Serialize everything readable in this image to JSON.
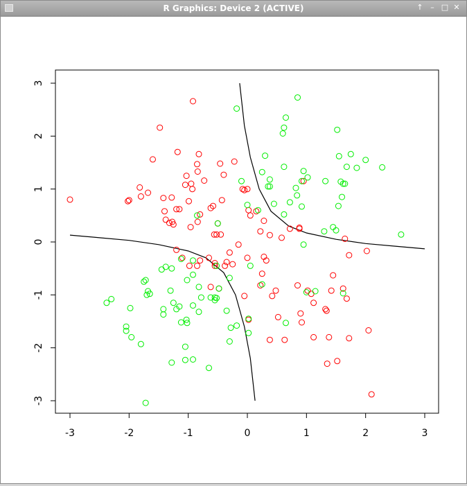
{
  "window": {
    "title": "R Graphics: Device 2 (ACTIVE)",
    "controls": [
      "pin-icon",
      "minimize-icon",
      "maximize-icon",
      "close-icon"
    ]
  },
  "chart_data": {
    "type": "scatter",
    "xlim": [
      -3,
      3
    ],
    "ylim": [
      -3,
      3
    ],
    "x_ticks": [
      "-3",
      "-2",
      "-1",
      "0",
      "1",
      "2",
      "3"
    ],
    "y_ticks": [
      "-3",
      "-2",
      "-1",
      "0",
      "1",
      "2",
      "3"
    ],
    "grid": false,
    "colors": {
      "red": "#ff0000",
      "green": "#00ee00",
      "curve": "#000000"
    },
    "series": [
      {
        "color": "#ff0000",
        "points": [
          [
            -3.0,
            0.8
          ],
          [
            -2.02,
            0.77
          ],
          [
            -2.0,
            0.79
          ],
          [
            -1.82,
            1.03
          ],
          [
            -1.8,
            0.86
          ],
          [
            -1.68,
            0.93
          ],
          [
            -1.6,
            1.56
          ],
          [
            -1.48,
            2.16
          ],
          [
            -1.42,
            0.83
          ],
          [
            -1.4,
            0.58
          ],
          [
            -1.38,
            0.42
          ],
          [
            -1.32,
            0.36
          ],
          [
            -1.28,
            0.84
          ],
          [
            -1.27,
            0.38
          ],
          [
            -1.25,
            0.33
          ],
          [
            -1.2,
            0.62
          ],
          [
            -1.18,
            1.7
          ],
          [
            -1.15,
            0.62
          ],
          [
            -1.05,
            1.08
          ],
          [
            -1.03,
            1.25
          ],
          [
            -0.99,
            0.77
          ],
          [
            -0.96,
            0.28
          ],
          [
            -0.95,
            1.1
          ],
          [
            -0.93,
            1.0
          ],
          [
            -0.92,
            2.66
          ],
          [
            -0.85,
            1.47
          ],
          [
            -0.84,
            1.33
          ],
          [
            -0.82,
            1.66
          ],
          [
            -0.8,
            0.52
          ],
          [
            -0.84,
            0.38
          ],
          [
            -0.73,
            1.16
          ],
          [
            -0.62,
            0.64
          ],
          [
            -0.58,
            0.68
          ],
          [
            -0.56,
            0.14
          ],
          [
            -0.52,
            0.14
          ],
          [
            -0.5,
            0.35
          ],
          [
            -0.46,
            1.48
          ],
          [
            -0.45,
            0.14
          ],
          [
            -0.43,
            0.79
          ],
          [
            -0.4,
            1.27
          ],
          [
            -0.22,
            1.52
          ],
          [
            -0.08,
            1.0
          ],
          [
            -0.05,
            0.98
          ],
          [
            0.0,
            1.0
          ],
          [
            0.02,
            0.6
          ],
          [
            0.05,
            0.5
          ],
          [
            0.15,
            0.58
          ],
          [
            0.22,
            0.2
          ],
          [
            0.28,
            0.4
          ],
          [
            0.38,
            0.13
          ],
          [
            0.58,
            0.08
          ],
          [
            0.72,
            0.25
          ],
          [
            0.88,
            0.27
          ],
          [
            0.88,
            0.25
          ],
          [
            0.95,
            1.15
          ],
          [
            1.65,
            0.06
          ],
          [
            1.72,
            -0.25
          ],
          [
            2.02,
            -0.17
          ],
          [
            -1.2,
            -0.15
          ],
          [
            -1.1,
            -0.3
          ],
          [
            -0.98,
            -0.45
          ],
          [
            -0.85,
            -0.45
          ],
          [
            -0.8,
            -0.35
          ],
          [
            -0.65,
            -0.3
          ],
          [
            -0.62,
            -0.85
          ],
          [
            -0.55,
            -0.4
          ],
          [
            -0.55,
            -0.45
          ],
          [
            -0.48,
            -0.88
          ],
          [
            -0.38,
            -0.45
          ],
          [
            -0.35,
            -0.38
          ],
          [
            -0.3,
            -0.2
          ],
          [
            -0.25,
            -0.42
          ],
          [
            -0.15,
            -0.05
          ],
          [
            -0.05,
            -1.02
          ],
          [
            0.0,
            -0.3
          ],
          [
            0.02,
            -1.47
          ],
          [
            0.22,
            -0.82
          ],
          [
            0.25,
            -0.6
          ],
          [
            0.28,
            -0.28
          ],
          [
            0.32,
            -0.35
          ],
          [
            0.38,
            -1.85
          ],
          [
            0.42,
            -1.02
          ],
          [
            0.48,
            -0.92
          ],
          [
            0.52,
            -1.42
          ],
          [
            0.63,
            -1.85
          ],
          [
            0.85,
            -0.82
          ],
          [
            0.9,
            -1.35
          ],
          [
            0.92,
            -1.52
          ],
          [
            1.02,
            -0.92
          ],
          [
            1.08,
            -0.98
          ],
          [
            1.12,
            -1.15
          ],
          [
            1.12,
            -1.8
          ],
          [
            1.32,
            -1.27
          ],
          [
            1.34,
            -1.3
          ],
          [
            1.35,
            -2.3
          ],
          [
            1.38,
            -1.8
          ],
          [
            1.42,
            -0.92
          ],
          [
            1.45,
            -0.63
          ],
          [
            1.52,
            -2.25
          ],
          [
            1.62,
            -0.88
          ],
          [
            1.68,
            -1.07
          ],
          [
            1.72,
            -1.82
          ],
          [
            2.05,
            -1.67
          ],
          [
            2.1,
            -2.88
          ]
        ]
      },
      {
        "color": "#00ee00",
        "points": [
          [
            -0.18,
            2.52
          ],
          [
            0.25,
            1.32
          ],
          [
            0.3,
            1.63
          ],
          [
            0.35,
            1.05
          ],
          [
            0.38,
            1.18
          ],
          [
            0.45,
            0.72
          ],
          [
            0.6,
            2.05
          ],
          [
            0.62,
            2.16
          ],
          [
            0.65,
            2.35
          ],
          [
            0.62,
            1.42
          ],
          [
            0.62,
            0.52
          ],
          [
            0.72,
            0.75
          ],
          [
            0.82,
            1.02
          ],
          [
            0.84,
            0.88
          ],
          [
            0.85,
            2.73
          ],
          [
            0.92,
            1.15
          ],
          [
            0.92,
            0.67
          ],
          [
            0.95,
            1.34
          ],
          [
            1.02,
            1.22
          ],
          [
            1.32,
            1.15
          ],
          [
            1.3,
            0.2
          ],
          [
            1.45,
            0.28
          ],
          [
            1.5,
            0.22
          ],
          [
            1.52,
            2.12
          ],
          [
            1.54,
            0.68
          ],
          [
            1.55,
            1.62
          ],
          [
            1.58,
            1.14
          ],
          [
            1.62,
            1.1
          ],
          [
            1.6,
            0.85
          ],
          [
            1.65,
            1.1
          ],
          [
            1.68,
            1.42
          ],
          [
            1.75,
            1.66
          ],
          [
            1.85,
            1.4
          ],
          [
            2.0,
            1.55
          ],
          [
            2.28,
            1.41
          ],
          [
            2.6,
            0.14
          ],
          [
            0.0,
            0.7
          ],
          [
            0.18,
            0.6
          ],
          [
            -0.5,
            0.35
          ],
          [
            -0.85,
            0.5
          ],
          [
            -0.1,
            1.15
          ],
          [
            0.38,
            1.05
          ],
          [
            0.95,
            -0.05
          ],
          [
            -1.45,
            -0.52
          ],
          [
            -1.38,
            -0.47
          ],
          [
            -1.28,
            -0.5
          ],
          [
            -1.12,
            -0.32
          ],
          [
            -0.92,
            -0.35
          ],
          [
            -1.02,
            -0.72
          ],
          [
            -0.92,
            -0.62
          ],
          [
            -0.82,
            -0.85
          ],
          [
            -0.52,
            -0.45
          ],
          [
            -0.48,
            -0.88
          ],
          [
            -0.3,
            -0.68
          ],
          [
            0.05,
            -0.45
          ],
          [
            0.25,
            -0.8
          ],
          [
            -1.75,
            -0.75
          ],
          [
            -1.72,
            -0.72
          ],
          [
            -1.68,
            -0.93
          ],
          [
            -1.65,
            -0.98
          ],
          [
            -1.7,
            -1.0
          ],
          [
            -1.3,
            -0.92
          ],
          [
            -1.2,
            -1.27
          ],
          [
            -1.25,
            -1.15
          ],
          [
            -1.15,
            -1.22
          ],
          [
            -1.42,
            -1.27
          ],
          [
            -1.42,
            -1.37
          ],
          [
            -1.12,
            -1.52
          ],
          [
            -1.03,
            -1.47
          ],
          [
            -1.02,
            -1.53
          ],
          [
            -0.92,
            -1.2
          ],
          [
            -0.82,
            -1.32
          ],
          [
            -0.78,
            -1.05
          ],
          [
            -0.62,
            -1.05
          ],
          [
            -0.55,
            -1.05
          ],
          [
            -0.55,
            -1.1
          ],
          [
            -0.52,
            -1.06
          ],
          [
            -0.35,
            -1.3
          ],
          [
            -0.28,
            -1.62
          ],
          [
            -0.18,
            -1.58
          ],
          [
            0.02,
            -1.45
          ],
          [
            0.02,
            -1.72
          ],
          [
            -0.3,
            -1.88
          ],
          [
            -2.38,
            -1.15
          ],
          [
            -2.3,
            -1.08
          ],
          [
            -2.05,
            -1.6
          ],
          [
            -2.05,
            -1.68
          ],
          [
            -1.98,
            -1.25
          ],
          [
            -1.96,
            -1.8
          ],
          [
            -1.8,
            -1.93
          ],
          [
            -1.72,
            -3.04
          ],
          [
            -1.28,
            -2.28
          ],
          [
            -1.05,
            -2.23
          ],
          [
            -1.05,
            -1.98
          ],
          [
            -0.92,
            -2.22
          ],
          [
            -0.65,
            -2.38
          ],
          [
            0.65,
            -1.53
          ],
          [
            1.0,
            -0.95
          ],
          [
            1.15,
            -0.93
          ],
          [
            1.62,
            -0.97
          ]
        ]
      }
    ],
    "curves": [
      {
        "points": [
          [
            -0.13,
            3.0
          ],
          [
            -0.05,
            2.2
          ],
          [
            0.05,
            1.6
          ],
          [
            0.2,
            1.0
          ],
          [
            0.4,
            0.58
          ],
          [
            0.7,
            0.3
          ],
          [
            1.0,
            0.17
          ],
          [
            1.5,
            0.05
          ],
          [
            2.0,
            -0.03
          ],
          [
            2.5,
            -0.08
          ],
          [
            3.0,
            -0.13
          ]
        ]
      },
      {
        "points": [
          [
            -3.0,
            0.13
          ],
          [
            -2.5,
            0.08
          ],
          [
            -2.0,
            0.03
          ],
          [
            -1.5,
            -0.05
          ],
          [
            -1.0,
            -0.17
          ],
          [
            -0.7,
            -0.3
          ],
          [
            -0.4,
            -0.58
          ],
          [
            -0.2,
            -1.0
          ],
          [
            -0.05,
            -1.6
          ],
          [
            0.05,
            -2.2
          ],
          [
            0.13,
            -3.0
          ]
        ]
      }
    ]
  }
}
